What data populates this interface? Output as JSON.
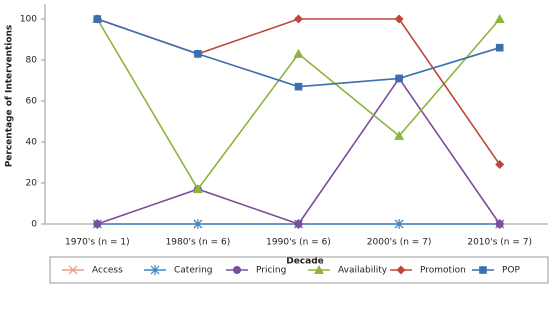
{
  "chart_data": {
    "type": "line",
    "x_label": "Decade",
    "y_label": "Percentage of Interventions",
    "categories": [
      "1970's (n = 1)",
      "1980's (n = 6)",
      "1990's (n = 6)",
      "2000's (n = 7)",
      "2010's (n = 7)"
    ],
    "ylim": [
      0,
      100
    ],
    "yticks": [
      0,
      20,
      40,
      60,
      80,
      100
    ],
    "legend": "bottom",
    "series": [
      {
        "name": "Access",
        "color": "#e8a07e",
        "marker": "x",
        "values": [
          0,
          0,
          0,
          0,
          0
        ]
      },
      {
        "name": "Catering",
        "color": "#3d85c6",
        "marker": "asterisk",
        "values": [
          0,
          0,
          0,
          0,
          0
        ]
      },
      {
        "name": "Pricing",
        "color": "#7b4e9c",
        "marker": "circle",
        "values": [
          0,
          17,
          0,
          71,
          0
        ]
      },
      {
        "name": "Availability",
        "color": "#8db43c",
        "marker": "triangle",
        "values": [
          100,
          17,
          83,
          43,
          100
        ]
      },
      {
        "name": "Promotion",
        "color": "#c0463c",
        "marker": "diamond",
        "values": [
          100,
          83,
          100,
          100,
          29
        ]
      },
      {
        "name": "POP",
        "color": "#3b6fae",
        "marker": "square",
        "values": [
          100,
          83,
          67,
          71,
          86
        ]
      }
    ]
  }
}
